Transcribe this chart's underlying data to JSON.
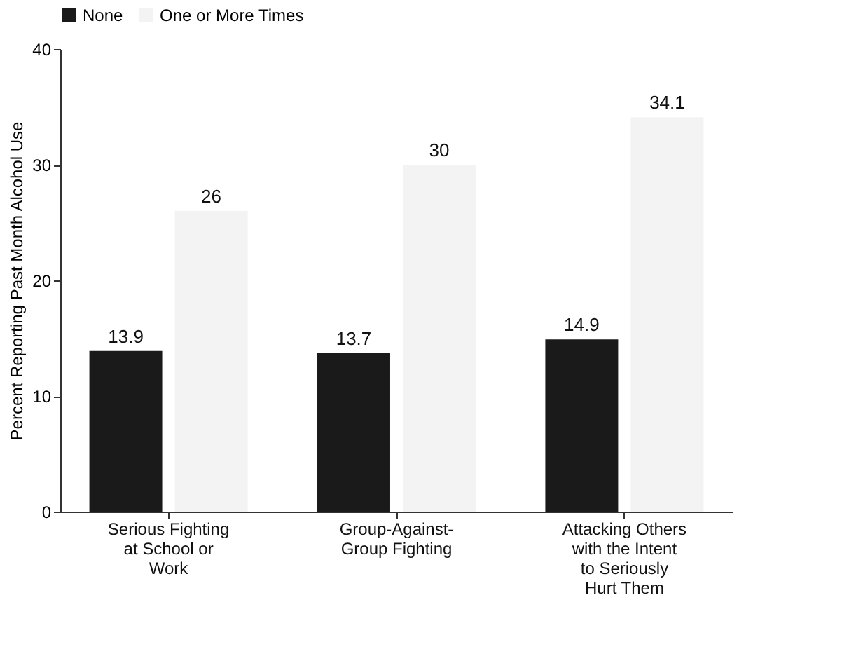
{
  "chart_data": {
    "type": "bar",
    "ylabel": "Percent Reporting Past Month Alcohol Use",
    "categories": [
      "Serious Fighting at School or Work",
      "Group-Against-Group Fighting",
      "Attacking Others with the Intent to Seriously Hurt Them"
    ],
    "series": [
      {
        "name": "None",
        "color": "#1a1a1a",
        "values": [
          13.9,
          13.7,
          14.9
        ]
      },
      {
        "name": "One or More Times",
        "color": "#f3f3f3",
        "values": [
          26,
          30,
          34.1
        ]
      }
    ],
    "ylim": [
      0,
      40
    ],
    "yticks": [
      0,
      10,
      20,
      30,
      40
    ],
    "grid": false,
    "legend": "top",
    "data_labels": true
  }
}
